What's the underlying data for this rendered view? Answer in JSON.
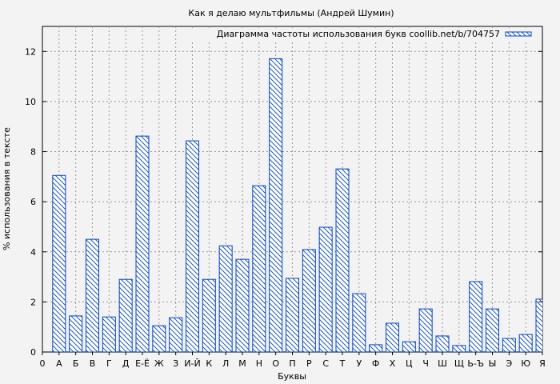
{
  "chart_data": {
    "type": "bar",
    "title": "Как я делаю мультфильмы (Андрей Шумин)",
    "xlabel": "Буквы",
    "ylabel": "% использования в тексте",
    "legend": "Диаграмма частоты использования букв coollib.net/b/704757",
    "legend_position": "top-right",
    "grid": true,
    "ylim": [
      0,
      13
    ],
    "yticks": [
      0,
      2,
      4,
      6,
      8,
      10,
      12
    ],
    "x_start_label": "0",
    "categories": [
      "А",
      "Б",
      "В",
      "Г",
      "Д",
      "Е-Ё",
      "Ж",
      "З",
      "И-Й",
      "К",
      "Л",
      "М",
      "Н",
      "О",
      "П",
      "Р",
      "С",
      "Т",
      "У",
      "Ф",
      "Х",
      "Ц",
      "Ч",
      "Ш",
      "Щ",
      "Ь-Ъ",
      "Ы",
      "Э",
      "Ю",
      "Я"
    ],
    "values": [
      7.05,
      1.44,
      4.5,
      1.4,
      2.9,
      8.62,
      1.05,
      1.37,
      8.43,
      2.9,
      4.24,
      3.7,
      6.64,
      11.71,
      2.94,
      4.09,
      4.98,
      7.31,
      2.33,
      0.29,
      1.15,
      0.41,
      1.72,
      0.64,
      0.26,
      2.81,
      1.72,
      0.54,
      0.7,
      2.11
    ],
    "colors": {
      "bar": "#0044cc",
      "background": "#f3f3f3",
      "grid": "#999999"
    }
  }
}
